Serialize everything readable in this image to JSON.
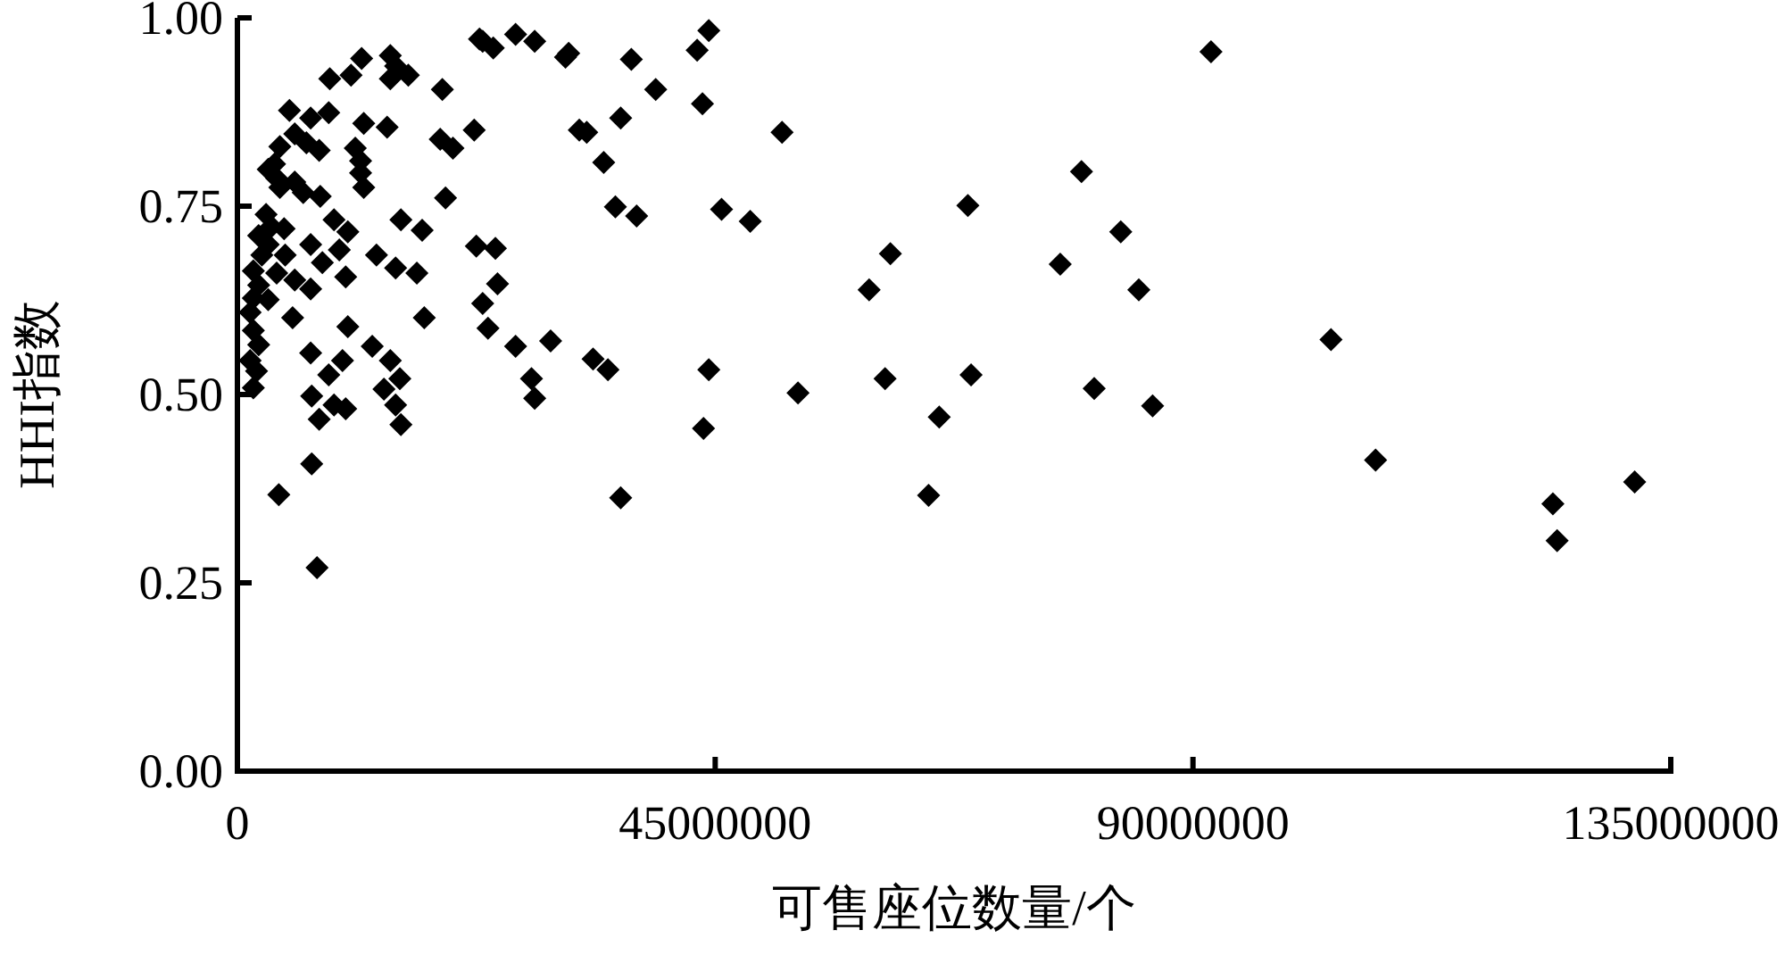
{
  "chart_data": {
    "type": "scatter",
    "xlabel": "可售座位数量/个",
    "ylabel": "HHI指数",
    "xlim": [
      0,
      135000000
    ],
    "ylim": [
      0,
      1
    ],
    "xticks": [
      0,
      45000000,
      90000000,
      135000000
    ],
    "yticks": [
      {
        "value": 0,
        "label": "0.00"
      },
      {
        "value": 0.25,
        "label": "0.25"
      },
      {
        "value": 0.5,
        "label": "0.50"
      },
      {
        "value": 0.75,
        "label": "0.75"
      },
      {
        "value": 1,
        "label": "1.00"
      }
    ],
    "marker": "diamond",
    "grid": false,
    "series": [
      {
        "color": "#000000",
        "x": [
          91700000,
          51300000,
          79500000,
          68800000,
          61500000,
          59500000,
          77500000,
          83200000,
          84900000,
          103000000,
          52800000,
          61000000,
          69100000,
          66100000,
          80700000,
          86200000,
          65100000,
          107200000,
          123900000,
          124300000,
          131600000,
          23100000,
          24100000,
          26200000,
          28000000,
          30900000,
          31200000,
          37100000,
          44400000,
          43300000,
          39400000,
          43800000,
          22300000,
          32200000,
          32900000,
          36100000,
          34500000,
          35600000,
          37600000,
          45600000,
          48300000,
          22500000,
          24300000,
          24500000,
          23100000,
          23600000,
          26200000,
          29500000,
          33500000,
          34900000,
          27700000,
          28000000,
          44400000,
          43900000,
          36100000,
          14400000,
          11700000,
          14900000,
          16100000,
          14400000,
          10700000,
          8700000,
          19300000,
          22800000,
          4900000,
          8600000,
          6900000,
          11900000,
          14100000,
          19100000,
          20300000,
          5400000,
          6500000,
          4000000,
          7700000,
          11100000,
          11600000,
          3500000,
          2900000,
          11600000,
          3700000,
          11900000,
          5400000,
          4000000,
          6200000,
          7800000,
          19600000,
          2700000,
          9100000,
          3200000,
          4400000,
          15400000,
          17400000,
          10400000,
          2000000,
          2900000,
          6900000,
          9600000,
          13100000,
          2300000,
          4500000,
          8000000,
          14900000,
          16900000,
          1500000,
          3700000,
          10200000,
          5400000,
          2000000,
          6900000,
          1500000,
          2900000,
          5200000,
          1200000,
          17600000,
          10400000,
          1500000,
          2000000,
          12700000,
          6900000,
          14400000,
          1200000,
          9900000,
          8600000,
          15300000,
          1800000,
          13800000,
          1500000,
          7000000,
          9100000,
          14900000,
          10200000,
          7700000,
          15400000,
          7000000,
          3900000,
          7500000
        ],
        "values": [
          0.955,
          0.848,
          0.796,
          0.751,
          0.687,
          0.639,
          0.673,
          0.716,
          0.639,
          0.573,
          0.502,
          0.521,
          0.526,
          0.47,
          0.508,
          0.485,
          0.366,
          0.413,
          0.355,
          0.306,
          0.384,
          0.969,
          0.96,
          0.978,
          0.969,
          0.948,
          0.953,
          0.945,
          0.983,
          0.957,
          0.905,
          0.886,
          0.851,
          0.851,
          0.848,
          0.867,
          0.808,
          0.749,
          0.737,
          0.746,
          0.73,
          0.697,
          0.694,
          0.647,
          0.621,
          0.588,
          0.564,
          0.571,
          0.547,
          0.533,
          0.521,
          0.495,
          0.533,
          0.455,
          0.363,
          0.95,
          0.946,
          0.936,
          0.924,
          0.919,
          0.924,
          0.919,
          0.905,
          0.972,
          0.877,
          0.874,
          0.867,
          0.86,
          0.855,
          0.839,
          0.827,
          0.846,
          0.834,
          0.829,
          0.824,
          0.827,
          0.81,
          0.806,
          0.799,
          0.794,
          0.787,
          0.775,
          0.782,
          0.775,
          0.768,
          0.763,
          0.761,
          0.739,
          0.732,
          0.723,
          0.72,
          0.732,
          0.718,
          0.716,
          0.711,
          0.699,
          0.699,
          0.692,
          0.685,
          0.685,
          0.685,
          0.675,
          0.668,
          0.661,
          0.664,
          0.661,
          0.656,
          0.652,
          0.645,
          0.64,
          0.628,
          0.626,
          0.602,
          0.609,
          0.602,
          0.59,
          0.585,
          0.566,
          0.564,
          0.555,
          0.545,
          0.545,
          0.545,
          0.526,
          0.521,
          0.531,
          0.507,
          0.509,
          0.498,
          0.486,
          0.486,
          0.481,
          0.467,
          0.46,
          0.408,
          0.367,
          0.27
        ]
      }
    ]
  }
}
